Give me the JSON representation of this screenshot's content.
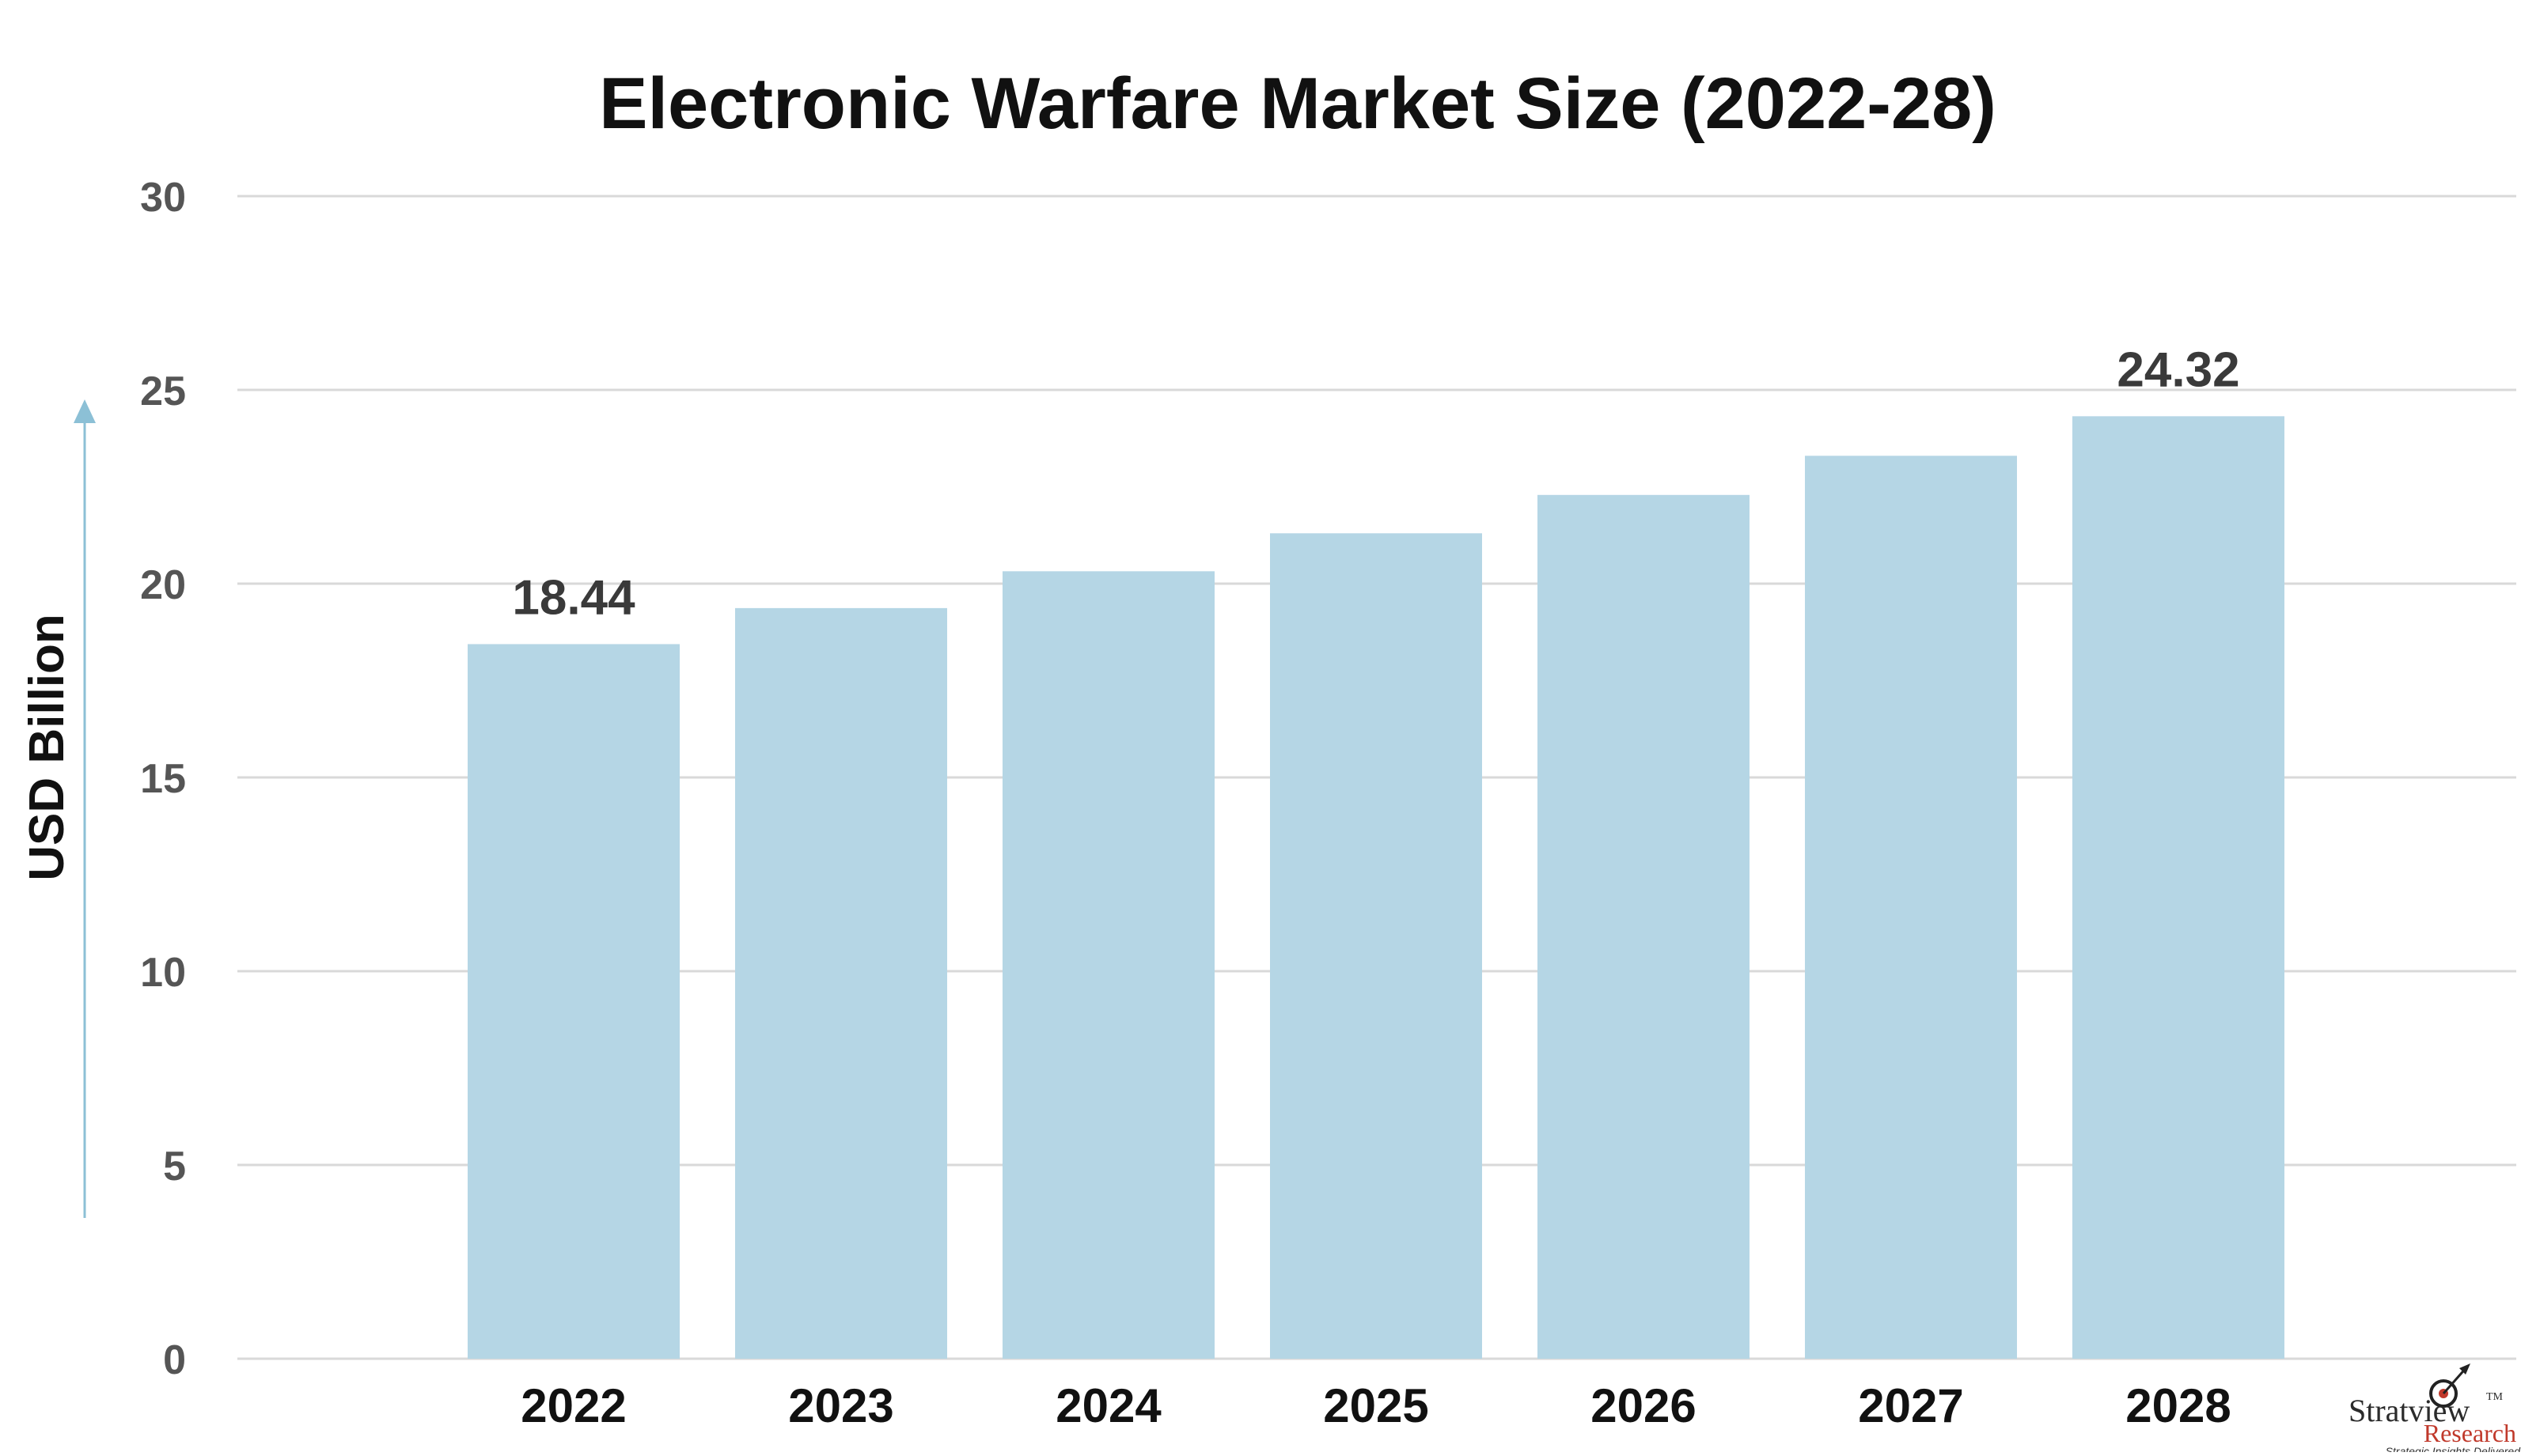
{
  "chart_data": {
    "type": "bar",
    "title": "Electronic Warfare Market Size (2022-28)",
    "ylabel": "USD Billion",
    "xlabel": "",
    "categories": [
      "2022",
      "2023",
      "2024",
      "2025",
      "2026",
      "2027",
      "2028"
    ],
    "values": [
      18.44,
      19.37,
      20.32,
      21.3,
      22.29,
      23.3,
      24.32
    ],
    "data_labels": [
      {
        "category": "2022",
        "text": "18.44"
      },
      {
        "category": "2028",
        "text": "24.32"
      }
    ],
    "ylim": [
      0,
      30
    ],
    "yticks": [
      "0",
      "5",
      "10",
      "15",
      "20",
      "25",
      "30"
    ],
    "grid": true,
    "legend": "none",
    "colors": {
      "bar": "#b5d6e5",
      "grid": "#d9d9d9",
      "axis_arrow": "#8cc0d6"
    }
  },
  "logo": {
    "name": "Stratview",
    "trademark": "TM",
    "sub": "Research",
    "tagline": "Strategic Insights Delivered"
  }
}
